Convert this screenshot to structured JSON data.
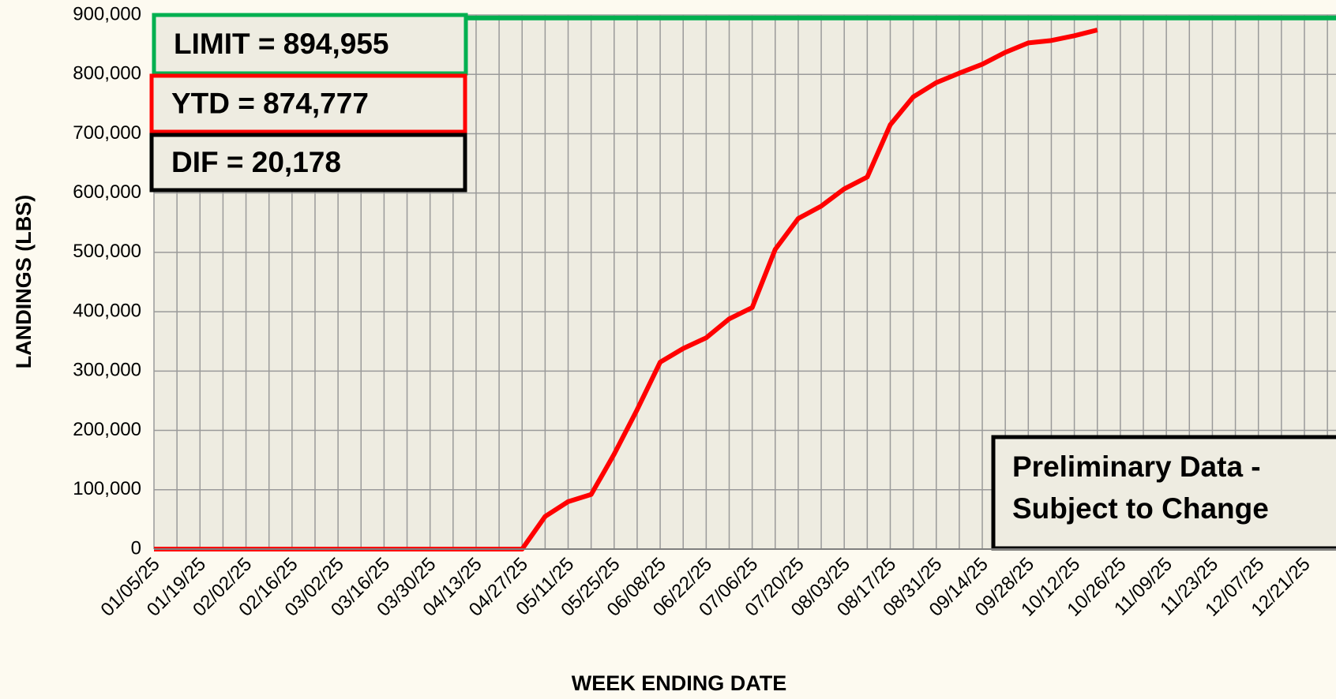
{
  "chart_data": {
    "type": "line",
    "xlabel": "WEEK ENDING DATE",
    "ylabel": "LANDINGS (LBS)",
    "categories": [
      "01/05/25",
      null,
      "01/19/25",
      null,
      "02/02/25",
      null,
      "02/16/25",
      null,
      "03/02/25",
      null,
      "03/16/25",
      null,
      "03/30/25",
      null,
      "04/13/25",
      null,
      "04/27/25",
      null,
      "05/11/25",
      null,
      "05/25/25",
      null,
      "06/08/25",
      null,
      "06/22/25",
      null,
      "07/06/25",
      null,
      "07/20/25",
      null,
      "08/03/25",
      null,
      "08/17/25",
      null,
      "08/31/25",
      null,
      "09/14/25",
      null,
      "09/28/25",
      null,
      "10/12/25",
      null,
      "10/26/25",
      null,
      "11/09/25",
      null,
      "11/23/25",
      null,
      "12/07/25",
      null,
      "12/21/25",
      null
    ],
    "series": [
      {
        "name": "YTD",
        "color": "#ff0000",
        "values": [
          0,
          0,
          0,
          0,
          0,
          0,
          0,
          0,
          0,
          0,
          0,
          0,
          0,
          0,
          0,
          0,
          0,
          55000,
          80000,
          92000,
          160000,
          235000,
          315000,
          338000,
          356000,
          388000,
          407000,
          505000,
          557000,
          578000,
          607000,
          627000,
          715000,
          762000,
          786000,
          802000,
          817000,
          837000,
          853000,
          857000,
          865000,
          874777,
          null,
          null,
          null,
          null,
          null,
          null,
          null,
          null,
          null,
          null
        ]
      }
    ],
    "limit": {
      "value": 894955,
      "color": "#00b050"
    },
    "annotations": [
      {
        "text": "LIMIT = 894,955",
        "color": "#00b050"
      },
      {
        "text": "YTD = 874,777",
        "color": "#ff0000"
      },
      {
        "text": "DIF = 20,178",
        "color": "#000000"
      }
    ],
    "note": [
      "Preliminary Data -",
      "Subject to Change"
    ],
    "ylim": [
      0,
      900000
    ],
    "yticks": [
      0,
      {
        "value": 100000,
        "label": "100,000"
      },
      {
        "value": 200000,
        "label": "200,000"
      },
      {
        "value": 300000,
        "label": "300,000"
      },
      {
        "value": 400000,
        "label": "400,000"
      },
      {
        "value": 500000,
        "label": "500,000"
      },
      {
        "value": 600000,
        "label": "600,000"
      },
      {
        "value": 700000,
        "label": "700,000"
      },
      {
        "value": 800000,
        "label": "800,000"
      },
      {
        "value": 900000,
        "label": "900,000"
      }
    ],
    "grid": true
  }
}
